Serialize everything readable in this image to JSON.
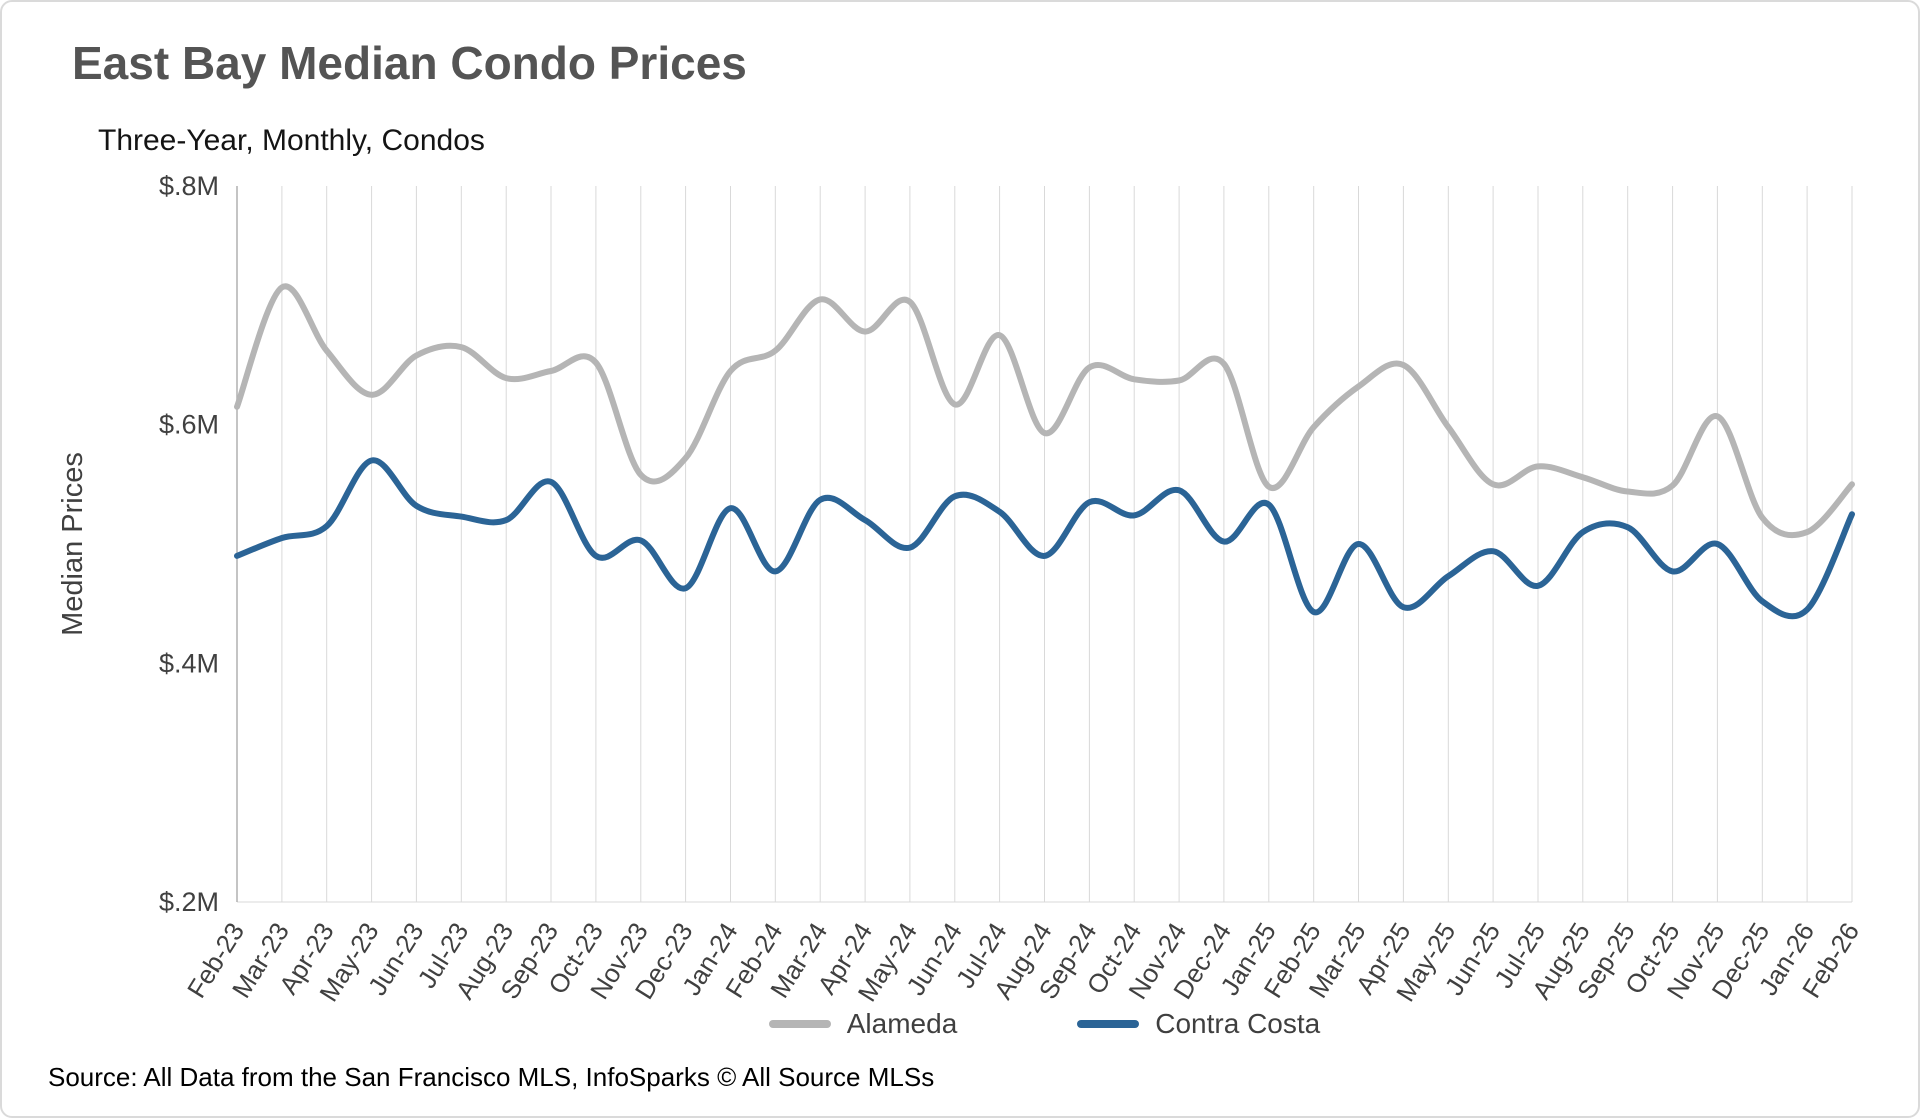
{
  "chart_data": {
    "type": "line",
    "title": "East Bay Median Condo Prices",
    "subtitle": "Three-Year, Monthly, Condos",
    "ylabel": "Median Prices",
    "xlabel": "",
    "ylim": [
      0.2,
      0.8
    ],
    "yticks": [
      {
        "value": 0.8,
        "label": "$.8M"
      },
      {
        "value": 0.6,
        "label": "$.6M"
      },
      {
        "value": 0.4,
        "label": "$.4M"
      },
      {
        "value": 0.2,
        "label": "$.2M"
      }
    ],
    "grid": "vertical",
    "grid_color": "#d9d9d9",
    "axis_color": "#b0b0b0",
    "tick_label_color": "#404040",
    "legend_position": "bottom",
    "categories": [
      "Feb-23",
      "Mar-23",
      "Apr-23",
      "May-23",
      "Jun-23",
      "Jul-23",
      "Aug-23",
      "Sep-23",
      "Oct-23",
      "Nov-23",
      "Dec-23",
      "Jan-24",
      "Feb-24",
      "Mar-24",
      "Apr-24",
      "May-24",
      "Jun-24",
      "Jul-24",
      "Aug-24",
      "Sep-24",
      "Oct-24",
      "Nov-24",
      "Dec-24",
      "Jan-25",
      "Feb-25",
      "Mar-25",
      "Apr-25",
      "May-25",
      "Jun-25",
      "Jul-25",
      "Aug-25",
      "Sep-25",
      "Oct-25",
      "Nov-25",
      "Dec-25",
      "Jan-26",
      "Feb-26"
    ],
    "series": [
      {
        "name": "Alameda",
        "color": "#b5b5b5",
        "values": [
          0.615,
          0.715,
          0.662,
          0.625,
          0.658,
          0.665,
          0.639,
          0.645,
          0.652,
          0.558,
          0.572,
          0.645,
          0.662,
          0.705,
          0.678,
          0.703,
          0.617,
          0.675,
          0.593,
          0.648,
          0.638,
          0.637,
          0.651,
          0.548,
          0.598,
          0.632,
          0.65,
          0.598,
          0.55,
          0.565,
          0.556,
          0.544,
          0.549,
          0.607,
          0.522,
          0.51,
          0.55
        ]
      },
      {
        "name": "Contra Costa",
        "color": "#2b6496",
        "values": [
          0.49,
          0.505,
          0.515,
          0.57,
          0.532,
          0.523,
          0.52,
          0.552,
          0.49,
          0.503,
          0.463,
          0.53,
          0.477,
          0.537,
          0.52,
          0.497,
          0.54,
          0.527,
          0.49,
          0.535,
          0.524,
          0.545,
          0.502,
          0.533,
          0.443,
          0.5,
          0.447,
          0.473,
          0.494,
          0.465,
          0.51,
          0.514,
          0.477,
          0.5,
          0.452,
          0.445,
          0.525
        ]
      }
    ]
  },
  "footer": {
    "source": "Source: All Data from the San Francisco MLS, InfoSparks © All Source MLSs"
  }
}
